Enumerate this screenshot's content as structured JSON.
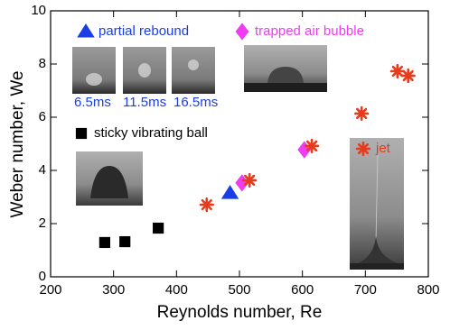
{
  "chart_data": {
    "type": "scatter",
    "x_label": "Reynolds number, Re",
    "y_label": "Weber number, We",
    "xlim": [
      200,
      800
    ],
    "xticks": [
      200,
      300,
      400,
      500,
      600,
      700,
      800
    ],
    "ylim": [
      0,
      10
    ],
    "yticks": [
      0,
      2,
      4,
      6,
      8,
      10
    ],
    "series": [
      {
        "name": "partial rebound",
        "color": "#1a3ee6",
        "marker": "triangle",
        "x": [
          485
        ],
        "values": [
          3.15
        ]
      },
      {
        "name": "trapped air bubble",
        "color": "#f03cf0",
        "marker": "diamond",
        "x": [
          504,
          603
        ],
        "values": [
          3.53,
          4.78
        ]
      },
      {
        "name": "sticky vibrating ball",
        "color": "#000000",
        "marker": "square",
        "x": [
          286,
          318,
          371
        ],
        "values": [
          1.29,
          1.32,
          1.83
        ]
      },
      {
        "name": "jet",
        "color": "#e63b1c",
        "marker": "asterisk",
        "x": [
          448,
          516,
          615,
          694,
          751,
          768
        ],
        "values": [
          2.71,
          3.63,
          4.92,
          6.14,
          7.73,
          7.56
        ]
      }
    ],
    "annotations": [
      "6.5ms",
      "11.5ms",
      "16.5ms"
    ]
  }
}
